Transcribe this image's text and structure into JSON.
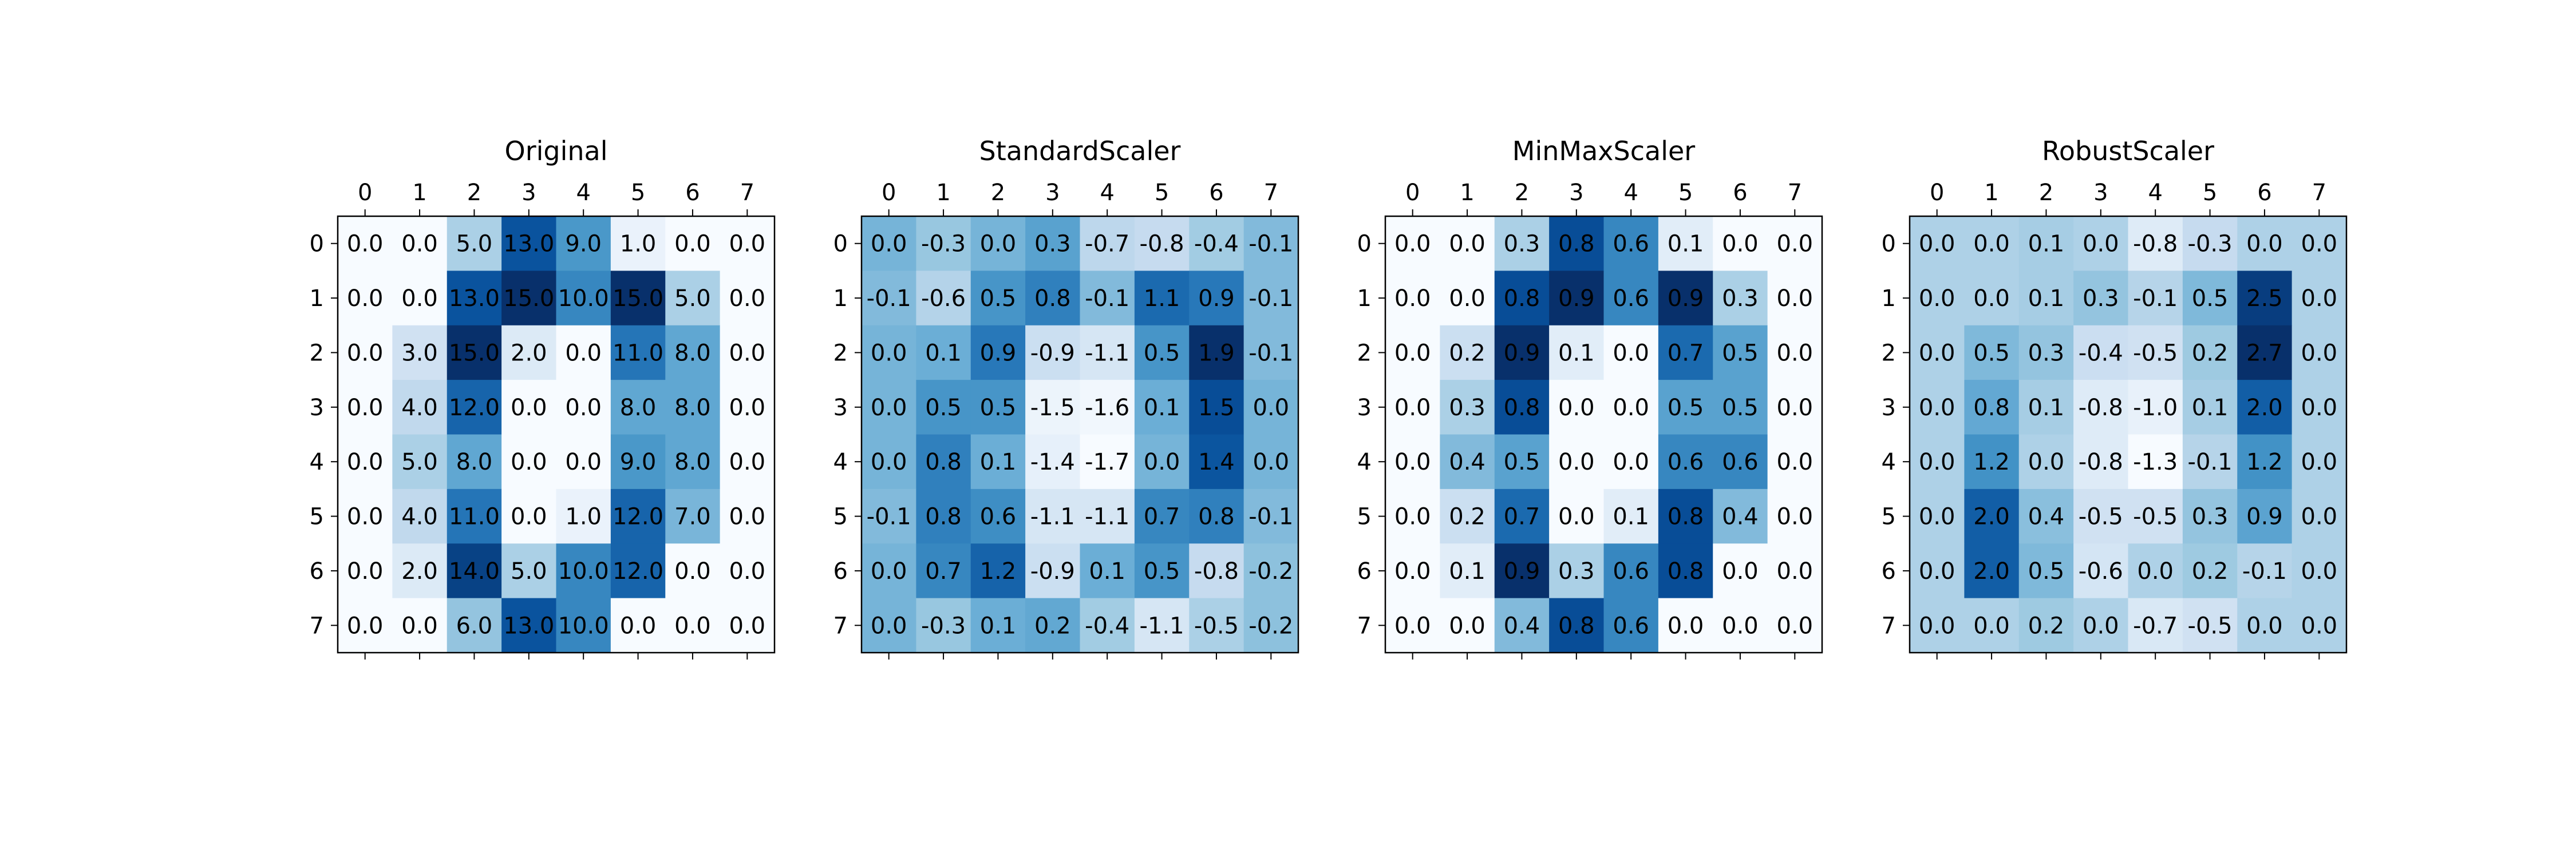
{
  "chart_data": [
    {
      "type": "heatmap",
      "title": "Original",
      "colormap": "Blues",
      "x": [
        "0",
        "1",
        "2",
        "3",
        "4",
        "5",
        "6",
        "7"
      ],
      "y": [
        "0",
        "1",
        "2",
        "3",
        "4",
        "5",
        "6",
        "7"
      ],
      "values": [
        [
          0.0,
          0.0,
          5.0,
          13.0,
          9.0,
          1.0,
          0.0,
          0.0
        ],
        [
          0.0,
          0.0,
          13.0,
          15.0,
          10.0,
          15.0,
          5.0,
          0.0
        ],
        [
          0.0,
          3.0,
          15.0,
          2.0,
          0.0,
          11.0,
          8.0,
          0.0
        ],
        [
          0.0,
          4.0,
          12.0,
          0.0,
          0.0,
          8.0,
          8.0,
          0.0
        ],
        [
          0.0,
          5.0,
          8.0,
          0.0,
          0.0,
          9.0,
          8.0,
          0.0
        ],
        [
          0.0,
          4.0,
          11.0,
          0.0,
          1.0,
          12.0,
          7.0,
          0.0
        ],
        [
          0.0,
          2.0,
          14.0,
          5.0,
          10.0,
          12.0,
          0.0,
          0.0
        ],
        [
          0.0,
          0.0,
          6.0,
          13.0,
          10.0,
          0.0,
          0.0,
          0.0
        ]
      ]
    },
    {
      "type": "heatmap",
      "title": "StandardScaler",
      "colormap": "Blues",
      "x": [
        "0",
        "1",
        "2",
        "3",
        "4",
        "5",
        "6",
        "7"
      ],
      "y": [
        "0",
        "1",
        "2",
        "3",
        "4",
        "5",
        "6",
        "7"
      ],
      "values": [
        [
          0.0,
          -0.3,
          -0.0,
          0.3,
          -0.7,
          -0.8,
          -0.4,
          -0.1
        ],
        [
          -0.1,
          -0.6,
          0.5,
          0.8,
          -0.1,
          1.1,
          0.9,
          -0.1
        ],
        [
          -0.0,
          0.1,
          0.9,
          -0.9,
          -1.1,
          0.5,
          1.9,
          -0.1
        ],
        [
          -0.0,
          0.5,
          0.5,
          -1.5,
          -1.6,
          0.1,
          1.5,
          -0.0
        ],
        [
          0.0,
          0.8,
          0.1,
          -1.4,
          -1.7,
          0.0,
          1.4,
          0.0
        ],
        [
          -0.1,
          0.8,
          0.6,
          -1.1,
          -1.1,
          0.7,
          0.8,
          -0.1
        ],
        [
          -0.0,
          0.7,
          1.2,
          -0.9,
          0.1,
          0.5,
          -0.8,
          -0.2
        ],
        [
          -0.0,
          -0.3,
          0.1,
          0.2,
          -0.4,
          -1.1,
          -0.5,
          -0.2
        ]
      ]
    },
    {
      "type": "heatmap",
      "title": "MinMaxScaler",
      "colormap": "Blues",
      "x": [
        "0",
        "1",
        "2",
        "3",
        "4",
        "5",
        "6",
        "7"
      ],
      "y": [
        "0",
        "1",
        "2",
        "3",
        "4",
        "5",
        "6",
        "7"
      ],
      "values": [
        [
          0.0,
          0.0,
          0.3,
          0.8,
          0.6,
          0.1,
          0.0,
          0.0
        ],
        [
          0.0,
          0.0,
          0.8,
          0.9,
          0.6,
          0.9,
          0.3,
          0.0
        ],
        [
          0.0,
          0.2,
          0.9,
          0.1,
          0.0,
          0.7,
          0.5,
          0.0
        ],
        [
          0.0,
          0.3,
          0.8,
          0.0,
          0.0,
          0.5,
          0.5,
          0.0
        ],
        [
          0.0,
          0.4,
          0.5,
          0.0,
          0.0,
          0.6,
          0.6,
          0.0
        ],
        [
          0.0,
          0.2,
          0.7,
          0.0,
          0.1,
          0.8,
          0.4,
          0.0
        ],
        [
          0.0,
          0.1,
          0.9,
          0.3,
          0.6,
          0.8,
          0.0,
          0.0
        ],
        [
          0.0,
          0.0,
          0.4,
          0.8,
          0.6,
          0.0,
          0.0,
          0.0
        ]
      ]
    },
    {
      "type": "heatmap",
      "title": "RobustScaler",
      "colormap": "Blues",
      "x": [
        "0",
        "1",
        "2",
        "3",
        "4",
        "5",
        "6",
        "7"
      ],
      "y": [
        "0",
        "1",
        "2",
        "3",
        "4",
        "5",
        "6",
        "7"
      ],
      "values": [
        [
          0.0,
          0.0,
          0.1,
          0.0,
          -0.8,
          -0.3,
          0.0,
          0.0
        ],
        [
          0.0,
          0.0,
          0.1,
          0.3,
          -0.1,
          0.5,
          2.5,
          0.0
        ],
        [
          0.0,
          0.5,
          0.3,
          -0.4,
          -0.5,
          0.2,
          2.7,
          0.0
        ],
        [
          0.0,
          0.8,
          0.1,
          -0.8,
          -1.0,
          0.1,
          2.0,
          0.0
        ],
        [
          0.0,
          1.2,
          0.0,
          -0.8,
          -1.3,
          -0.1,
          1.2,
          0.0
        ],
        [
          0.0,
          2.0,
          0.4,
          -0.5,
          -0.5,
          0.3,
          0.9,
          0.0
        ],
        [
          0.0,
          2.0,
          0.5,
          -0.6,
          0.0,
          0.2,
          -0.1,
          0.0
        ],
        [
          0.0,
          0.0,
          0.2,
          0.0,
          -0.7,
          -0.5,
          0.0,
          0.0
        ]
      ]
    }
  ]
}
